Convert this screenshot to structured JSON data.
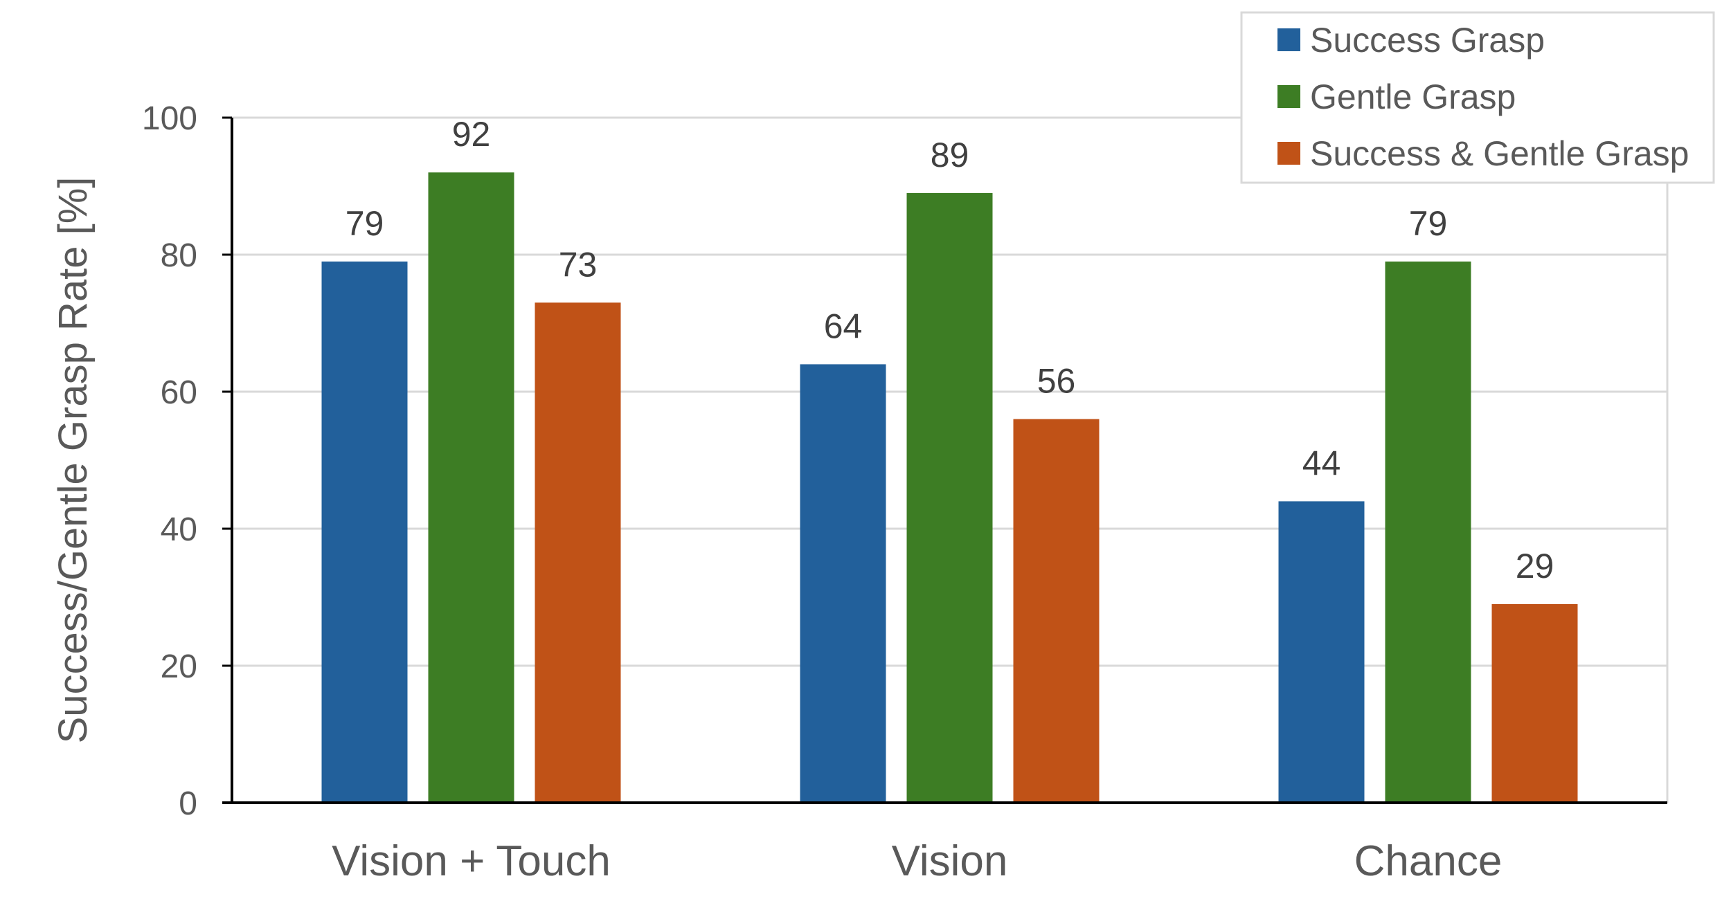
{
  "chart_data": {
    "type": "bar",
    "title": "",
    "xlabel": "",
    "ylabel": "Success/Gentle Grasp Rate [%]",
    "ylim": [
      0,
      100
    ],
    "yticks": [
      0,
      20,
      40,
      60,
      80,
      100
    ],
    "yticks_text": [
      "0",
      "20",
      "40",
      "60",
      "80",
      "100"
    ],
    "grid": true,
    "legend_position": "top-right",
    "categories": [
      "Vision + Touch",
      "Vision",
      "Chance"
    ],
    "series": [
      {
        "name": "Success Grasp",
        "color": "#22609B",
        "values": [
          79,
          64,
          44
        ],
        "labels": [
          "79",
          "64",
          "44"
        ]
      },
      {
        "name": "Gentle Grasp",
        "color": "#3D7D24",
        "values": [
          92,
          89,
          79
        ],
        "labels": [
          "92",
          "89",
          "79"
        ]
      },
      {
        "name": "Success & Gentle Grasp",
        "color": "#C05217",
        "values": [
          73,
          56,
          29
        ],
        "labels": [
          "73",
          "56",
          "29"
        ]
      }
    ]
  }
}
